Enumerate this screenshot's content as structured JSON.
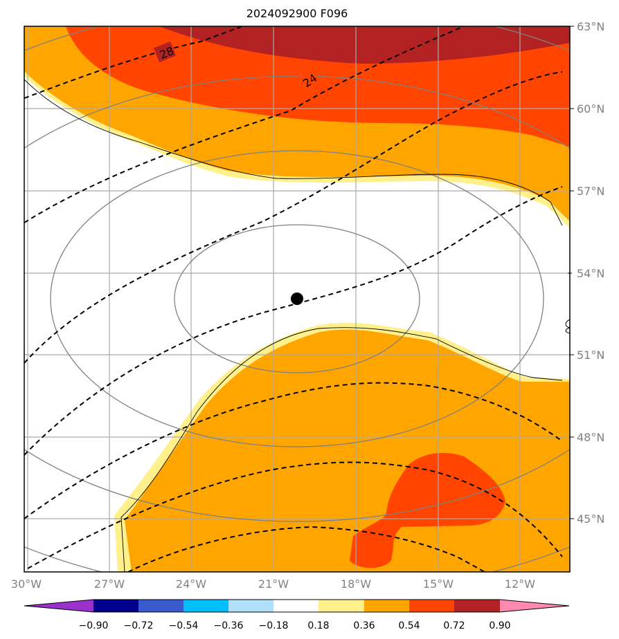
{
  "title": "2024092900 F096",
  "lat_labels": [
    "63°N",
    "60°N",
    "57°N",
    "54°N",
    "51°N",
    "48°N",
    "45°N"
  ],
  "lon_labels": [
    "30°W",
    "27°W",
    "24°W",
    "21°W",
    "18°W",
    "15°W",
    "12°W"
  ],
  "contour_labels": [
    "28",
    "24"
  ],
  "colorbar": {
    "colors": [
      "#9932cc",
      "#00008b",
      "#3a5bd0",
      "#00bfff",
      "#b0e0fa",
      "#ffffff",
      "#fff08c",
      "#ffa500",
      "#ff4500",
      "#b22222",
      "#ff88b0"
    ],
    "labels": [
      "−0.90",
      "−0.72",
      "−0.54",
      "−0.36",
      "−0.18",
      "0.18",
      "0.36",
      "0.54",
      "0.72",
      "0.90"
    ]
  },
  "fill_colors": {
    "light_yellow": "#fff08c",
    "orange": "#ffa500",
    "red_orange": "#ff4500",
    "dark_red": "#b22222"
  },
  "center_marker": {
    "lat": 53.0,
    "lon": -20.1
  }
}
